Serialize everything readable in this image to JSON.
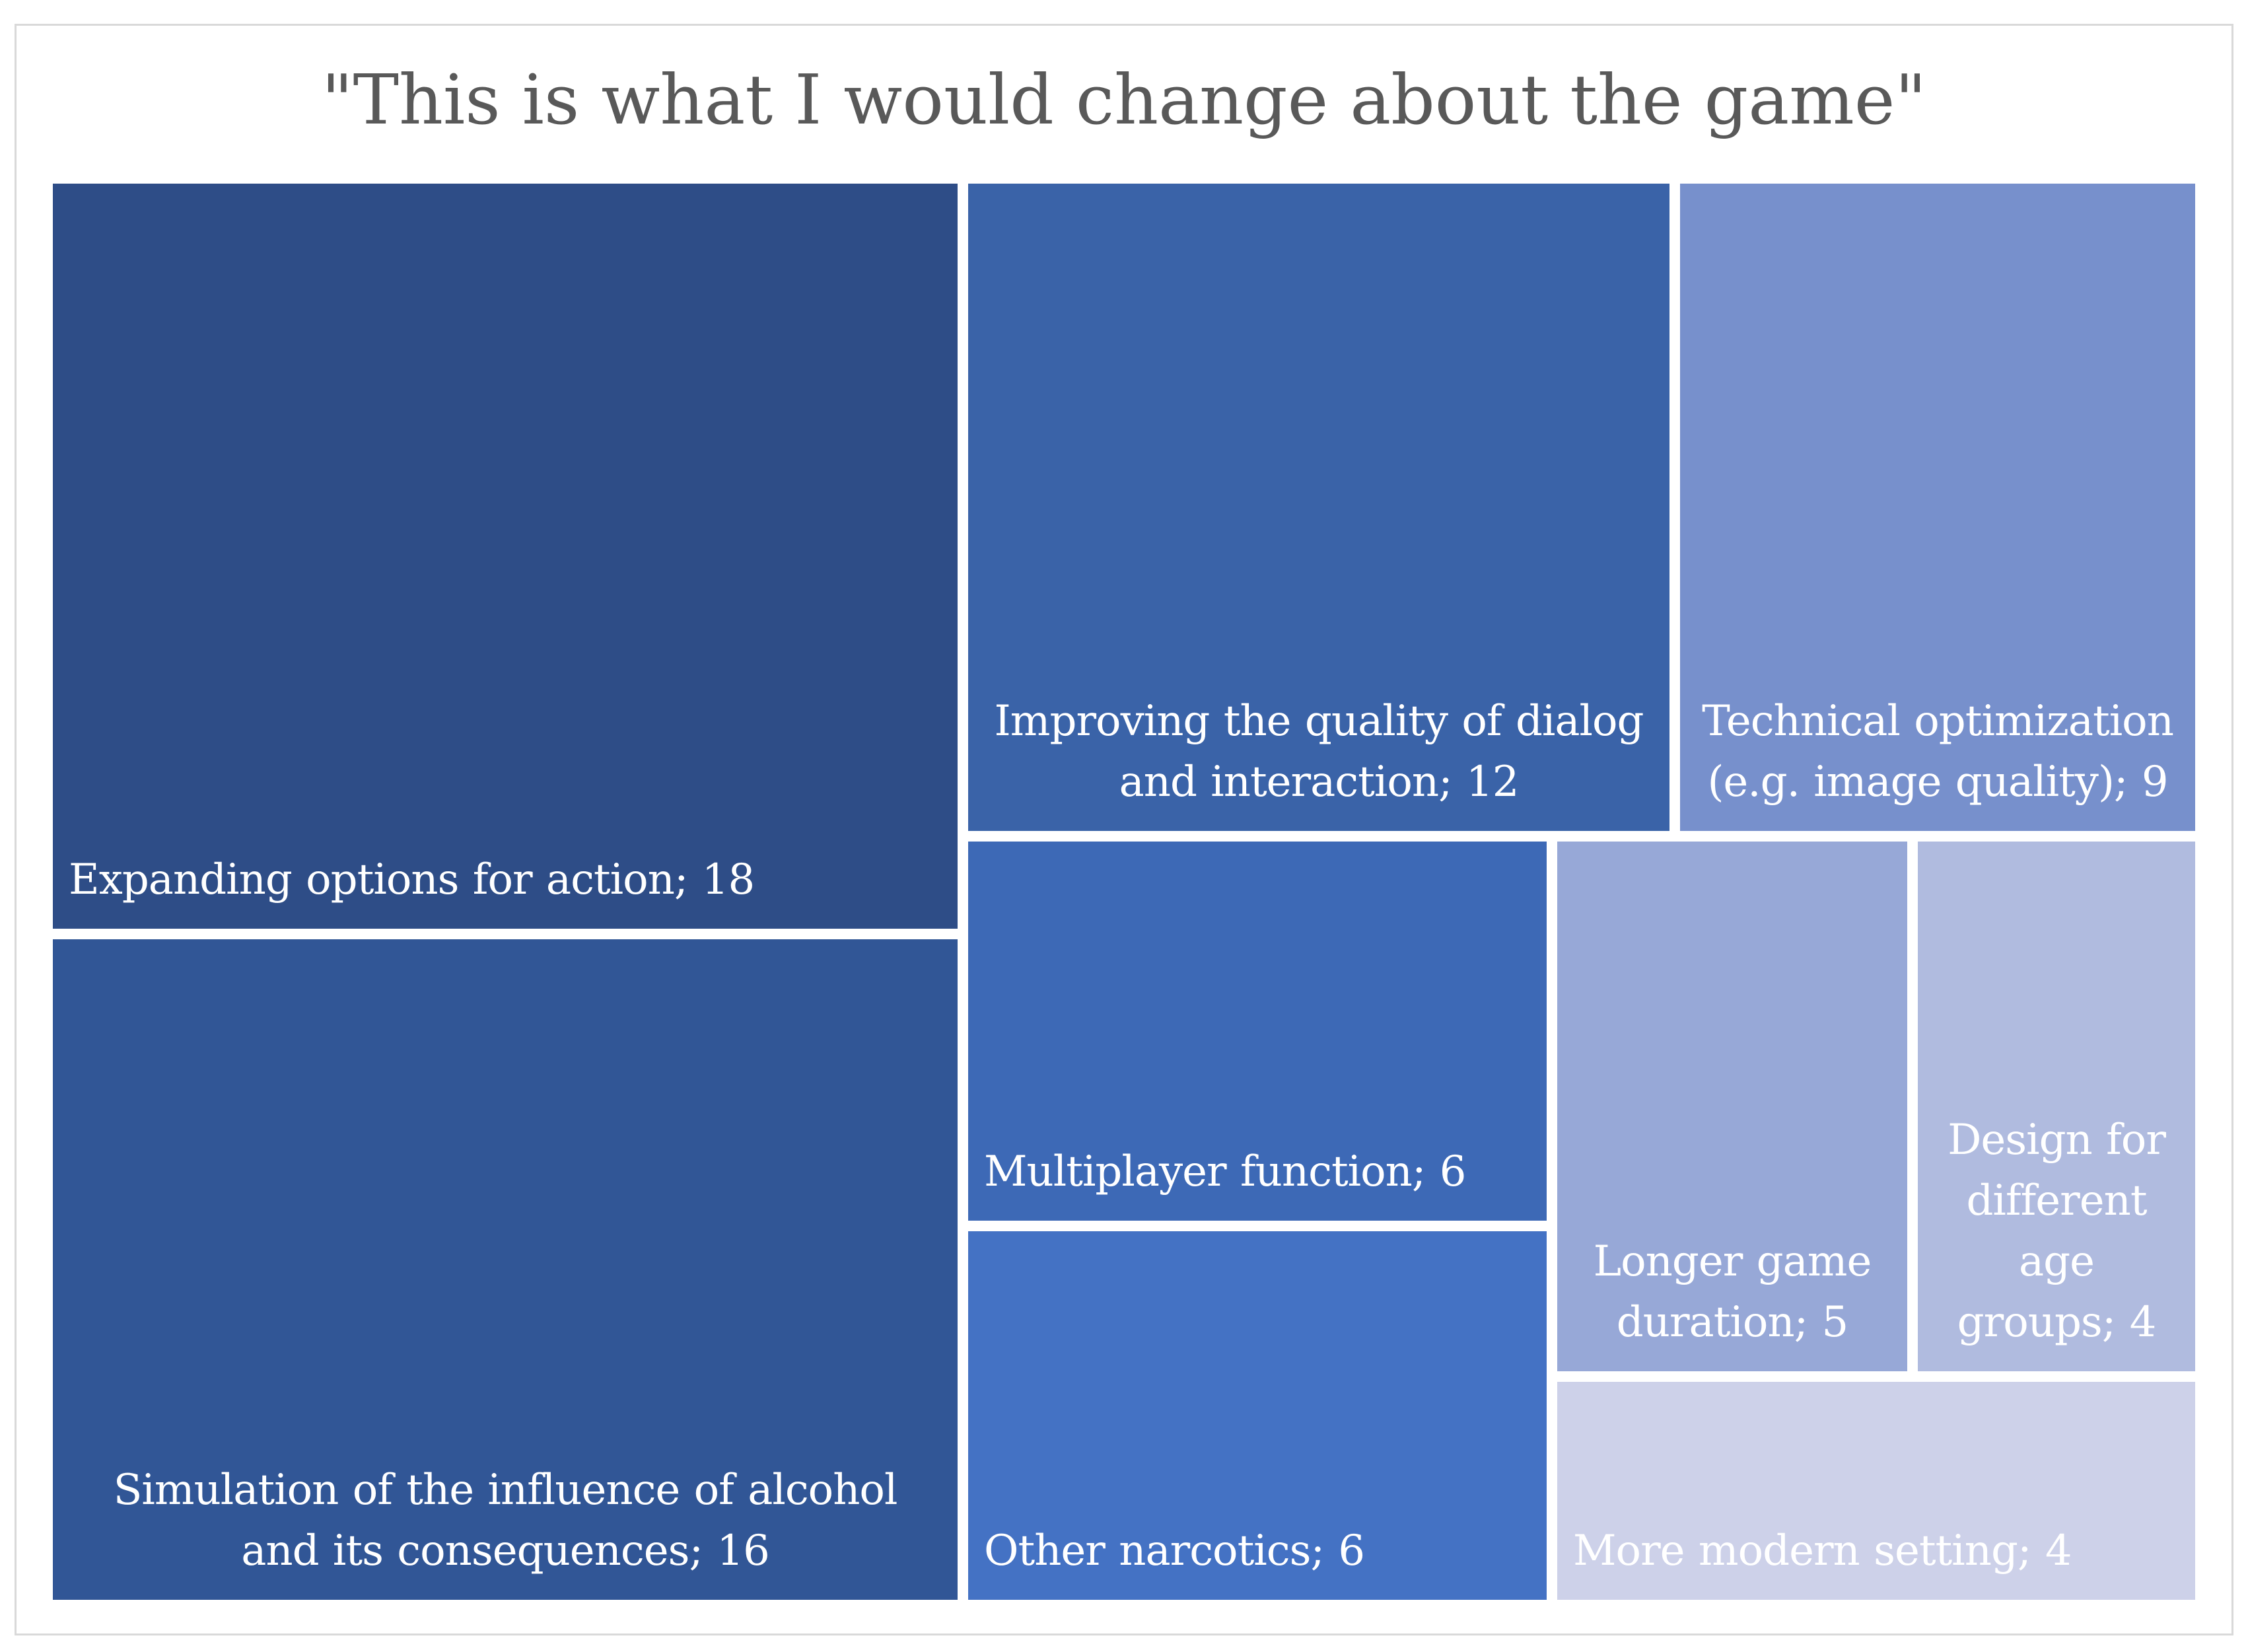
{
  "chart_data": {
    "type": "treemap",
    "title": "\"This is what I would change about the game\"",
    "items": [
      {
        "id": "expanding",
        "name": "Expanding options for action",
        "value": 18,
        "label": "Expanding options for action; 18",
        "color": "#2e4d87",
        "align": "left"
      },
      {
        "id": "simulation",
        "name": "Simulation of the influence of alcohol and its consequences",
        "value": 16,
        "label": "Simulation of the influence of alcohol and its consequences; 16",
        "color": "#315696",
        "align": "center"
      },
      {
        "id": "dialog",
        "name": "Improving the quality of dialog and interaction",
        "value": 12,
        "label": "Improving the quality of dialog and interaction; 12",
        "color": "#3a63a8",
        "align": "center"
      },
      {
        "id": "technical",
        "name": "Technical optimization (e.g. image quality)",
        "value": 9,
        "label": "Technical optimization (e.g. image quality); 9",
        "color": "#7790cc",
        "align": "center"
      },
      {
        "id": "multiplayer",
        "name": "Multiplayer function",
        "value": 6,
        "label": "Multiplayer function; 6",
        "color": "#3d69b6",
        "align": "left"
      },
      {
        "id": "narcotics",
        "name": "Other narcotics",
        "value": 6,
        "label": "Other narcotics; 6",
        "color": "#4472c4",
        "align": "left"
      },
      {
        "id": "duration",
        "name": "Longer game duration",
        "value": 5,
        "label": "Longer game duration; 5",
        "color": "#97a8d7",
        "align": "center"
      },
      {
        "id": "agegroups",
        "name": "Design for different age groups",
        "value": 4,
        "label": "Design for different age groups; 4",
        "color": "#b0bbdf",
        "align": "center"
      },
      {
        "id": "setting",
        "name": "More modern setting",
        "value": 4,
        "label": "More modern setting; 4",
        "color": "#cdd1e9",
        "align": "left"
      }
    ]
  }
}
